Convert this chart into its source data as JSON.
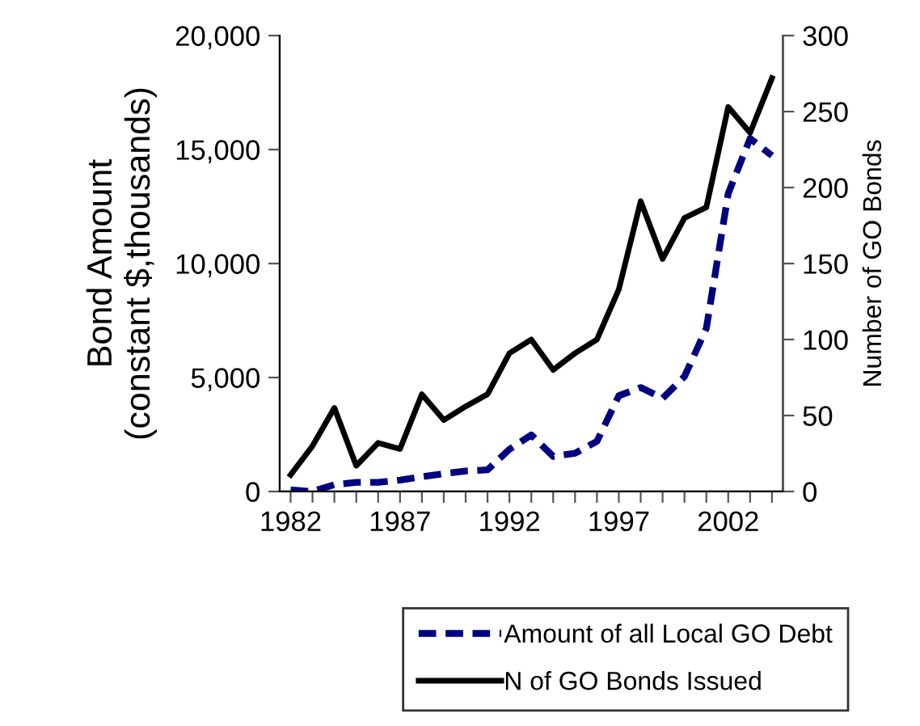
{
  "chart_data": {
    "type": "line",
    "ylabel": "Bond Amount\n(constant $,thousands)",
    "y2label": "Number of GO Bonds",
    "x": [
      1982,
      1983,
      1984,
      1985,
      1986,
      1987,
      1988,
      1989,
      1990,
      1991,
      1992,
      1993,
      1994,
      1995,
      1996,
      1997,
      1998,
      1999,
      2000,
      2001,
      2002,
      2003,
      2004
    ],
    "series": [
      {
        "name": "Amount of all Local GO Debt",
        "color": "#000080",
        "line_style": "dashed",
        "values": [
          70,
          0,
          300,
          400,
          400,
          500,
          650,
          780,
          900,
          950,
          1850,
          2480,
          1540,
          1680,
          2200,
          4200,
          4560,
          4090,
          5040,
          7160,
          13070,
          15490,
          14730
        ]
      },
      {
        "name": "N of GO Bonds Issued",
        "color": "#000000",
        "line_style": "solid",
        "axis": "y2",
        "values": [
          11,
          30,
          55,
          17,
          32,
          28,
          64,
          47,
          56,
          64,
          91,
          100,
          80,
          91,
          100,
          133,
          191,
          153,
          180,
          187,
          253,
          236,
          272
        ]
      }
    ],
    "xlim": [
      1981.5,
      2004.5
    ],
    "xticks": [
      1982,
      {
        "value": 1983,
        "label": null
      },
      {
        "value": 1984,
        "label": null
      },
      {
        "value": 1985,
        "label": null
      },
      {
        "value": 1986,
        "label": null
      },
      1987,
      {
        "value": 1988,
        "label": null
      },
      {
        "value": 1989,
        "label": null
      },
      {
        "value": 1990,
        "label": null
      },
      {
        "value": 1991,
        "label": null
      },
      1992,
      {
        "value": 1993,
        "label": null
      },
      {
        "value": 1994,
        "label": null
      },
      {
        "value": 1995,
        "label": null
      },
      {
        "value": 1996,
        "label": null
      },
      1997,
      {
        "value": 1998,
        "label": null
      },
      {
        "value": 1999,
        "label": null
      },
      {
        "value": 2000,
        "label": null
      },
      {
        "value": 2001,
        "label": null
      },
      2002,
      {
        "value": 2003,
        "label": null
      },
      {
        "value": 2004,
        "label": null
      }
    ],
    "ylim": [
      0,
      20000
    ],
    "yticks": [
      0,
      {
        "value": 5000,
        "label": "5,000"
      },
      {
        "value": 10000,
        "label": "10,000"
      },
      {
        "value": 15000,
        "label": "15,000"
      },
      {
        "value": 20000,
        "label": "20,000"
      }
    ],
    "y2lim": [
      0,
      300
    ],
    "y2ticks": [
      0,
      50,
      100,
      150,
      200,
      250,
      300
    ],
    "grid": false,
    "legend": "bottom",
    "marker": "none"
  }
}
